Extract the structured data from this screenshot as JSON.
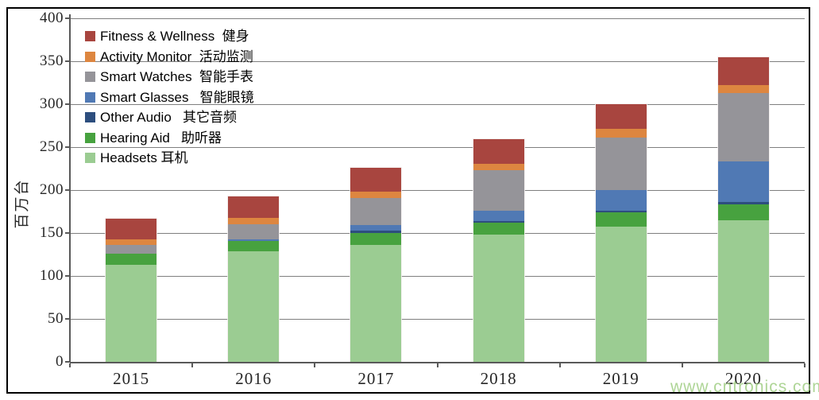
{
  "watermark": "www.cntronics.com",
  "colors": {
    "frame": "#000000",
    "grid": "#7f7f7f",
    "axis": "#595959",
    "tick_text": "#262626",
    "legend_text": "#000000",
    "watermark": "rgba(160,206,132,0.85)"
  },
  "chart_data": {
    "type": "bar",
    "stacked": true,
    "title": "",
    "xlabel": "",
    "ylabel": "百万台",
    "ylim": [
      0,
      400
    ],
    "yticks": [
      0,
      50,
      100,
      150,
      200,
      250,
      300,
      350,
      400
    ],
    "grid": true,
    "legend_position": "top-left-inside",
    "categories": [
      "2015",
      "2016",
      "2017",
      "2018",
      "2019",
      "2020"
    ],
    "series": [
      {
        "key": "fitness-wellness",
        "label": "Fitness & Wellness  健身",
        "color": "#A8453F",
        "values": [
          24,
          25,
          28,
          28,
          29,
          33
        ]
      },
      {
        "key": "activity-monitor",
        "label": "Activity Monitor  活动监测",
        "color": "#DD8640",
        "values": [
          7,
          8,
          7,
          8,
          10,
          9
        ]
      },
      {
        "key": "smart-watches",
        "label": "Smart Watches  智能手表",
        "color": "#959499",
        "values": [
          10,
          17,
          32,
          47,
          61,
          80
        ]
      },
      {
        "key": "smart-glasses",
        "label": "Smart Glasses   智能眼镜",
        "color": "#5079B4",
        "values": [
          0,
          2,
          6,
          12,
          24,
          47
        ]
      },
      {
        "key": "other-audio",
        "label": "Other Audio   其它音频",
        "color": "#2D4E7E",
        "values": [
          0,
          0,
          3,
          2,
          2,
          3
        ]
      },
      {
        "key": "hearing-aid",
        "label": "Hearing Aid   助听器",
        "color": "#47A23F",
        "values": [
          13,
          12,
          14,
          14,
          17,
          18
        ]
      },
      {
        "key": "headsets",
        "label": "Headsets 耳机",
        "color": "#9BCC92",
        "values": [
          113,
          129,
          136,
          148,
          157,
          165
        ]
      }
    ],
    "totals": [
      167,
      193,
      226,
      259,
      300,
      355
    ],
    "stack_note": "bars stacked bottom-to-top in reverse of series order (Headsets at bottom, Fitness & Wellness on top)"
  }
}
